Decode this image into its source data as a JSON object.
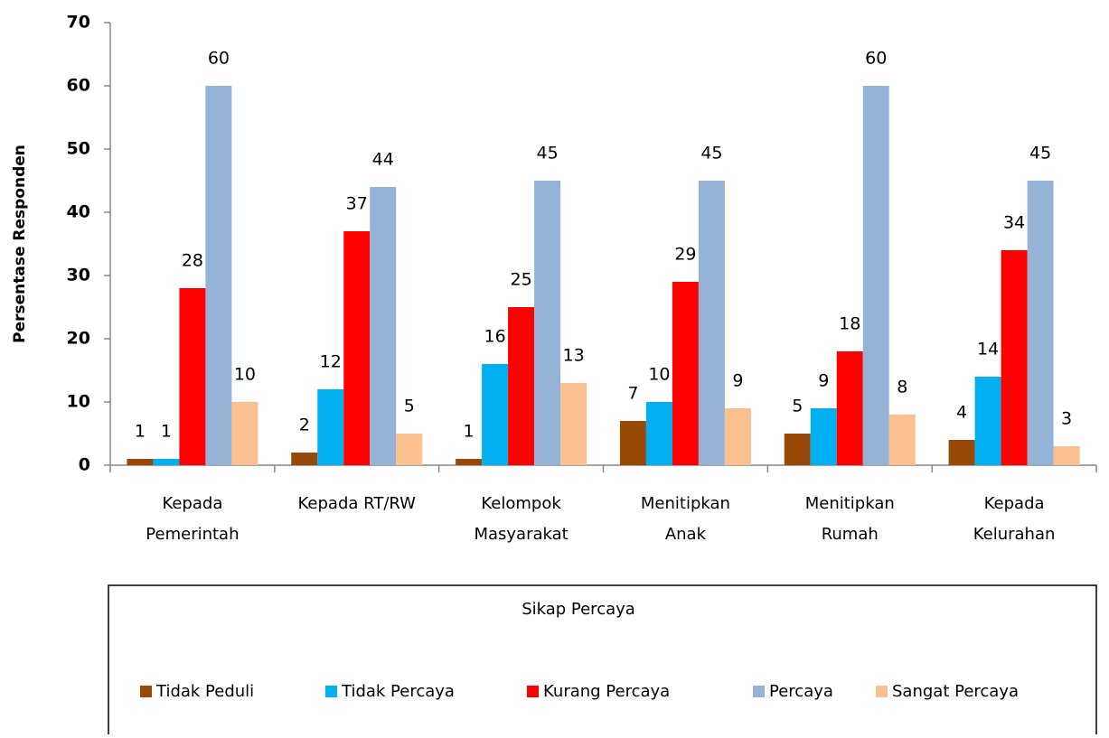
{
  "chart_data": {
    "type": "bar",
    "x_label": "Sikap Percaya",
    "y_label": "Persentase Responden",
    "categories": [
      "Kepada\nPemerintah",
      "Kepada RT/RW",
      "Kelompok\nMasyarakat",
      "Menitipkan\nAnak",
      "Menitipkan\nRumah",
      "Kepada\nKelurahan"
    ],
    "series": [
      {
        "name": "Tidak Peduli",
        "color": "#984807",
        "values": [
          1,
          2,
          1,
          7,
          5,
          4
        ]
      },
      {
        "name": "Tidak Percaya",
        "color": "#00b0f0",
        "values": [
          1,
          12,
          16,
          10,
          9,
          14
        ]
      },
      {
        "name": "Kurang Percaya",
        "color": "#ff0000",
        "values": [
          28,
          37,
          25,
          29,
          18,
          34
        ]
      },
      {
        "name": "Percaya",
        "color": "#95b3d7",
        "values": [
          60,
          44,
          45,
          45,
          60,
          45
        ]
      },
      {
        "name": "Sangat Percaya",
        "color": "#fac090",
        "values": [
          10,
          5,
          13,
          9,
          8,
          3
        ]
      }
    ],
    "ylim": [
      0,
      70
    ],
    "yticks": [
      0,
      10,
      20,
      30,
      40,
      50,
      60,
      70
    ],
    "grid": false,
    "legend": "bottom"
  }
}
